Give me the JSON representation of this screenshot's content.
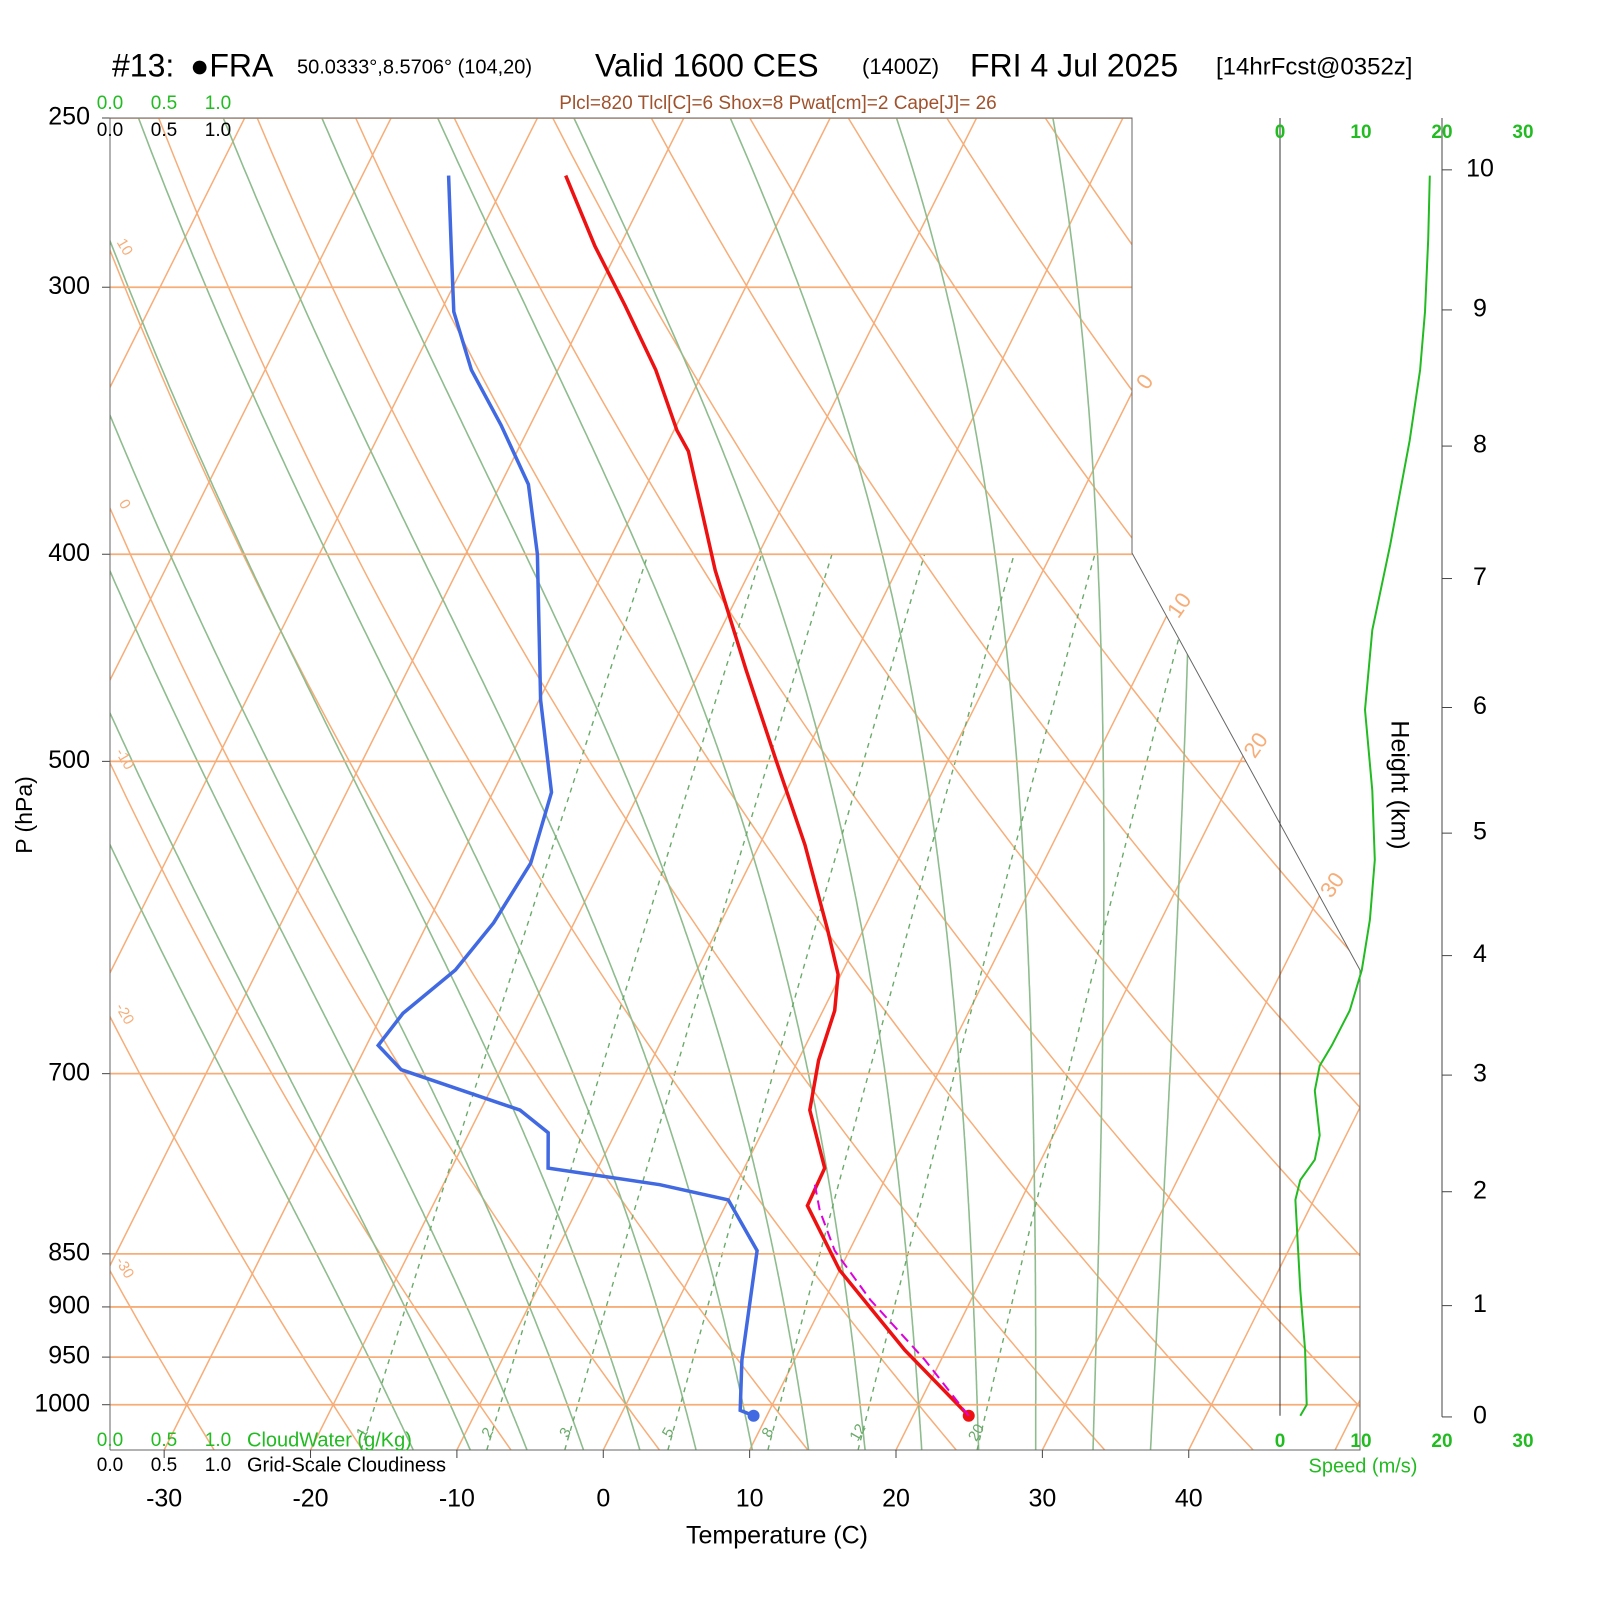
{
  "chart_data": {
    "type": "skewt",
    "title_parts": [
      "#13:",
      "●FRA",
      "50.0333°,8.5706° (104,20)",
      "Valid 1600 CES",
      "(1400Z)",
      "FRI 4 Jul 2025",
      "[14hrFcst@0352z]"
    ],
    "subtitle": "Plcl=820 Tlcl[C]=6 Shox=8 Pwat[cm]=2 Cape[J]= 26",
    "xlabel": "Temperature (C)",
    "ylabel": "P (hPa)",
    "y2label": "Height (km)",
    "xlim": [
      -33.7,
      51.7
    ],
    "xticks": [
      -30,
      -20,
      -10,
      0,
      10,
      20,
      30,
      40
    ],
    "ylim": [
      1050,
      250
    ],
    "yticks": [
      250,
      300,
      400,
      500,
      700,
      850,
      900,
      950,
      1000
    ],
    "log_y": true,
    "y2ticks": [
      0,
      1,
      2,
      3,
      4,
      5,
      6,
      7,
      8,
      9,
      10
    ],
    "isotherm_labels": [
      0,
      10,
      20,
      30
    ],
    "dry_adiabat_labels": [
      10,
      0,
      -10,
      -20,
      -30
    ],
    "mixing_ratio_lines": [
      1,
      2,
      3,
      5,
      8,
      12,
      20
    ],
    "series": [
      {
        "color": "#ee1111",
        "marker": true,
        "pressure": [
          1012,
          943,
          865,
          807,
          775,
          728,
          690,
          654,
          629,
          600,
          547,
          499,
          453,
          407,
          358,
          350,
          328,
          306,
          287,
          266
        ],
        "values": [
          23.8,
          17.2,
          10.0,
          5.6,
          5.5,
          2.5,
          1.4,
          0.8,
          -0.2,
          -2.4,
          -6.9,
          -11.8,
          -16.9,
          -22.4,
          -28.3,
          -29.8,
          -33.3,
          -37.6,
          -41.7,
          -46.1
        ]
      },
      {
        "color": "#4169e1",
        "marker": true,
        "pressure": [
          1012,
          1006,
          953,
          847,
          802,
          789,
          775,
          746,
          728,
          697,
          679,
          656,
          626,
          595,
          558,
          517,
          468,
          400,
          371,
          348,
          328,
          308,
          288,
          266
        ],
        "values": [
          9.1,
          8.0,
          6.4,
          3.7,
          0.0,
          -5.2,
          -13.4,
          -14.6,
          -17.3,
          -26.8,
          -29.2,
          -28.6,
          -26.5,
          -25.5,
          -25.0,
          -26.0,
          -29.9,
          -35.1,
          -38.1,
          -42.0,
          -45.9,
          -49.1,
          -51.4,
          -54.1
        ]
      },
      {
        "color": "#dd00dd",
        "dash": true,
        "pressure": [
          1012,
          953,
          893,
          847,
          811,
          789
        ],
        "values": [
          23.8,
          18.9,
          13.1,
          9.0,
          6.6,
          5.4
        ]
      }
    ],
    "wind": {
      "label": "Speed (m/s)",
      "color": "#22bb22",
      "xlim": [
        0,
        30
      ],
      "xticks": [
        0,
        10,
        20,
        30
      ],
      "pressure": [
        1012,
        1000,
        943,
        884,
        802,
        785,
        768,
        748,
        713,
        694,
        679,
        654,
        626,
        593,
        556,
        516,
        473,
        434,
        396,
        354,
        328,
        308,
        285,
        266
      ],
      "values": [
        2.5,
        3.3,
        3.1,
        2.5,
        1.9,
        2.5,
        4.3,
        4.9,
        4.3,
        4.9,
        6.4,
        8.6,
        10.1,
        11.1,
        11.7,
        11.4,
        10.5,
        11.4,
        13.6,
        16.0,
        17.3,
        17.9,
        18.3,
        18.5
      ]
    },
    "cloud_water": {
      "label": "CloudWater (g/Kg)",
      "color": "#22bb22",
      "ticks": [
        {
          "value": 0,
          "label": "0.0"
        },
        {
          "value": 0.5,
          "label": "0.5"
        },
        {
          "value": 1,
          "label": "1.0"
        }
      ]
    },
    "cloudiness": {
      "label": "Grid-Scale Cloudiness",
      "color": "#000000",
      "ticks": [
        {
          "value": 0,
          "label": "0.0"
        },
        {
          "value": 0.5,
          "label": "0.5"
        },
        {
          "value": 1,
          "label": "1.0"
        }
      ]
    }
  }
}
